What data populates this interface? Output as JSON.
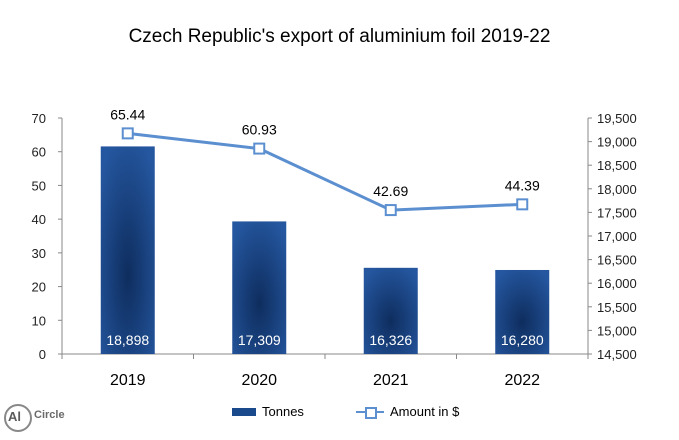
{
  "chart_data": {
    "type": "bar+line",
    "title": "Czech Republic's  export of aluminium  foil 2019-22",
    "categories": [
      "2019",
      "2020",
      "2021",
      "2022"
    ],
    "bar_series": {
      "name": "Tonnes",
      "axis": "right",
      "values": [
        18898,
        17309,
        16326,
        16280
      ],
      "labels": [
        "18,898",
        "17,309",
        "16,326",
        "16,280"
      ]
    },
    "line_series": {
      "name": "Amount in $",
      "axis": "left",
      "values": [
        65.44,
        60.93,
        42.69,
        44.39
      ],
      "labels": [
        "65.44",
        "60.93",
        "42.69",
        "44.39"
      ]
    },
    "left_axis": {
      "ylim": [
        0,
        70
      ],
      "ticks": [
        "0",
        "10",
        "20",
        "30",
        "40",
        "50",
        "60",
        "70"
      ],
      "tick_values": [
        0,
        10,
        20,
        30,
        40,
        50,
        60,
        70
      ]
    },
    "right_axis": {
      "ylim": [
        14500,
        19500
      ],
      "ticks": [
        "14,500",
        "15,000",
        "15,500",
        "16,000",
        "16,500",
        "17,000",
        "17,500",
        "18,000",
        "18,500",
        "19,000",
        "19,500"
      ],
      "tick_values": [
        14500,
        15000,
        15500,
        16000,
        16500,
        17000,
        17500,
        18000,
        18500,
        19000,
        19500
      ]
    },
    "legend_position": "bottom",
    "colors": {
      "bar": "#1a4a8c",
      "bar_dark": "#0e2d5e",
      "line": "#5b8fd0"
    }
  },
  "legend": {
    "bar_label": "Tonnes",
    "line_label": "Amount in $"
  },
  "logo": {
    "mark": "Al",
    "text": "Circle"
  }
}
